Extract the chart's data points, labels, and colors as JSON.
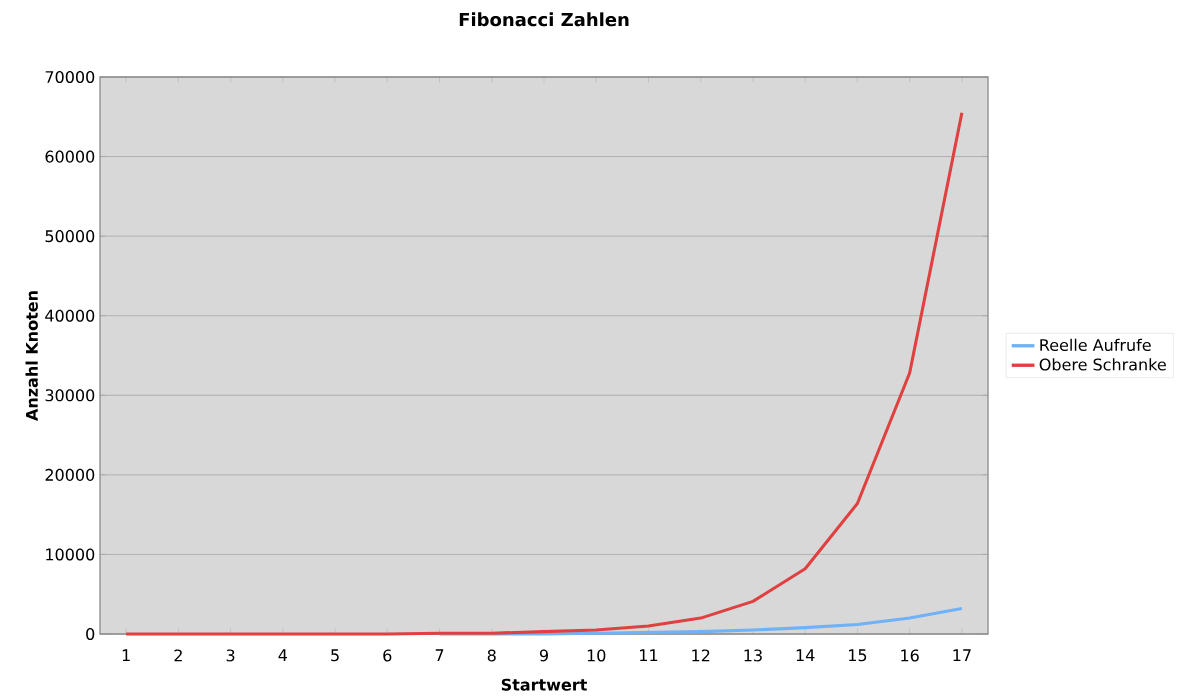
{
  "chart_data": {
    "type": "line",
    "title": "Fibonacci Zahlen",
    "xlabel": "Startwert",
    "ylabel": "Anzahl Knoten",
    "categories": [
      "1",
      "2",
      "3",
      "4",
      "5",
      "6",
      "7",
      "8",
      "9",
      "10",
      "11",
      "12",
      "13",
      "14",
      "15",
      "16",
      "17"
    ],
    "series": [
      {
        "name": "Reelle Aufrufe",
        "color": "#6fb2f7",
        "values": [
          null,
          null,
          null,
          null,
          null,
          null,
          0,
          0,
          0,
          100,
          200,
          300,
          500,
          800,
          1200,
          2000,
          3200
        ]
      },
      {
        "name": "Obere Schranke",
        "color": "#e04040",
        "values": [
          0,
          0,
          0,
          0,
          0,
          0,
          100,
          100,
          300,
          500,
          1000,
          2000,
          4100,
          8200,
          16400,
          32800,
          65500
        ]
      }
    ],
    "ylim": [
      0,
      70000
    ],
    "yticks": [
      0,
      10000,
      20000,
      30000,
      40000,
      50000,
      60000,
      70000
    ],
    "grid": "y",
    "legend": "right",
    "marker": "none",
    "line_style": "solid"
  }
}
